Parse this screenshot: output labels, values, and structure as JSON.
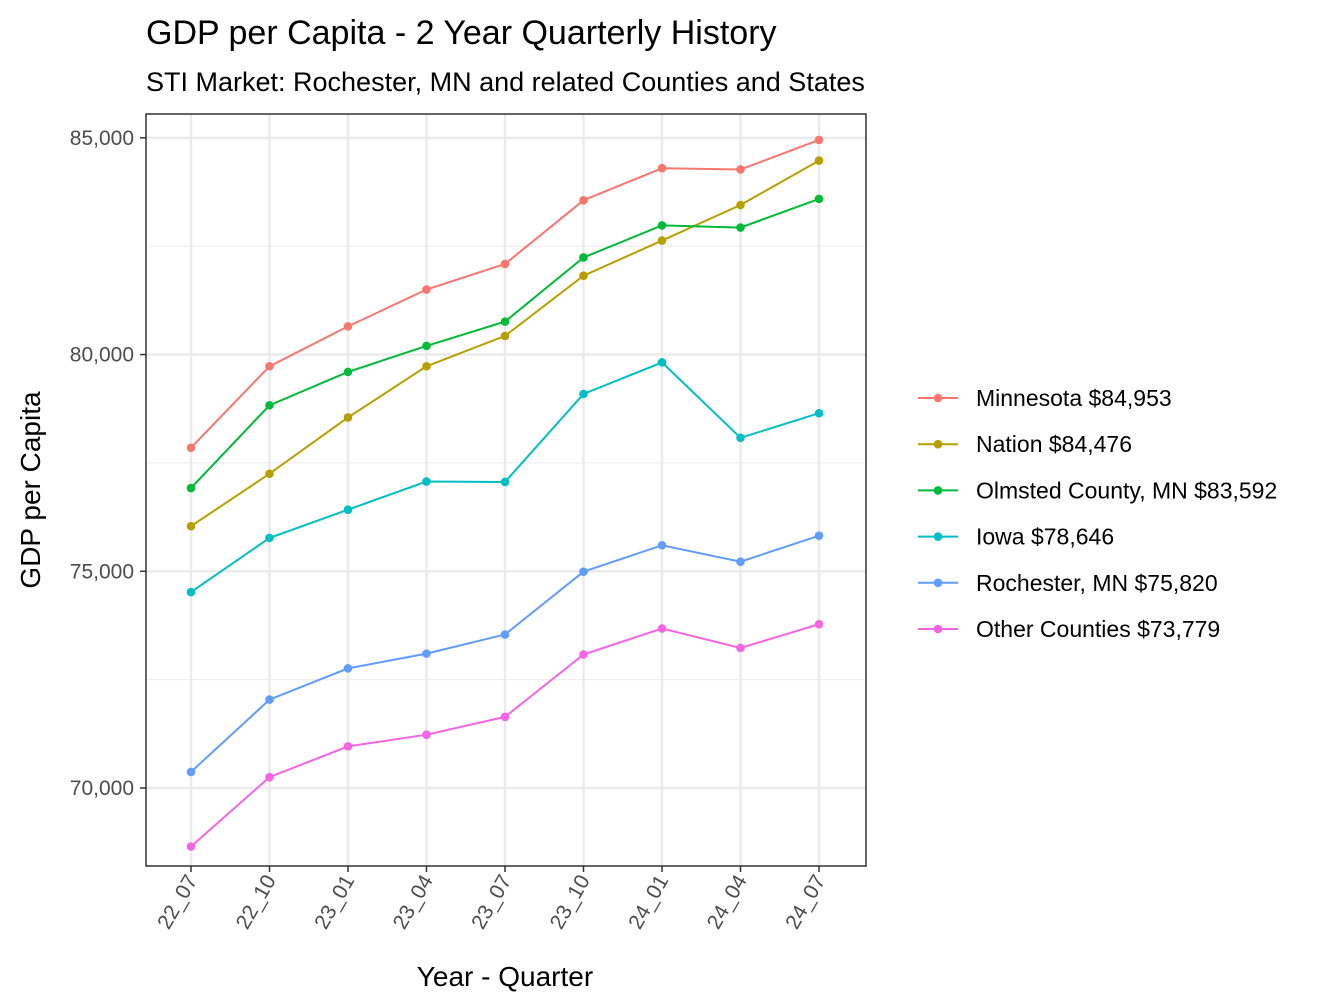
{
  "chart_data": {
    "type": "line",
    "title": "GDP per Capita - 2 Year Quarterly History",
    "subtitle": "STI Market: Rochester, MN and related Counties and States",
    "xlabel": "Year - Quarter",
    "ylabel": "GDP per Capita",
    "categories": [
      "22_07",
      "22_10",
      "23_01",
      "23_04",
      "23_07",
      "23_10",
      "24_01",
      "24_04",
      "24_07"
    ],
    "ylim": [
      68200,
      85550
    ],
    "yticks": [
      70000,
      75000,
      80000,
      85000
    ],
    "ytick_labels": [
      "70,000",
      "75,000",
      "80,000",
      "85,000"
    ],
    "grid": true,
    "legend_position": "right",
    "series": [
      {
        "name": "Minnesota",
        "label": "Minnesota $84,953",
        "color": "#F8766D",
        "values": [
          77850,
          79730,
          80650,
          81500,
          82090,
          83560,
          84300,
          84270,
          84953
        ]
      },
      {
        "name": "Nation",
        "label": "Nation $84,476",
        "color": "#B79F00",
        "values": [
          76040,
          77250,
          78550,
          79730,
          80430,
          81820,
          82630,
          83450,
          84476
        ]
      },
      {
        "name": "Olmsted County, MN",
        "label": "Olmsted County, MN $83,592",
        "color": "#00BA38",
        "values": [
          76920,
          78830,
          79600,
          80200,
          80760,
          82240,
          82980,
          82930,
          83592
        ]
      },
      {
        "name": "Iowa",
        "label": "Iowa $78,646",
        "color": "#00BFC4",
        "values": [
          74520,
          75770,
          76420,
          77070,
          77060,
          79090,
          79820,
          78080,
          78646
        ]
      },
      {
        "name": "Rochester, MN",
        "label": "Rochester, MN $75,820",
        "color": "#619CFF",
        "values": [
          70370,
          72040,
          72760,
          73100,
          73540,
          74990,
          75600,
          75220,
          75820
        ]
      },
      {
        "name": "Other Counties",
        "label": "Other Counties $73,779",
        "color": "#F564E3",
        "values": [
          68650,
          70250,
          70960,
          71230,
          71640,
          73080,
          73680,
          73230,
          73779
        ]
      }
    ]
  }
}
